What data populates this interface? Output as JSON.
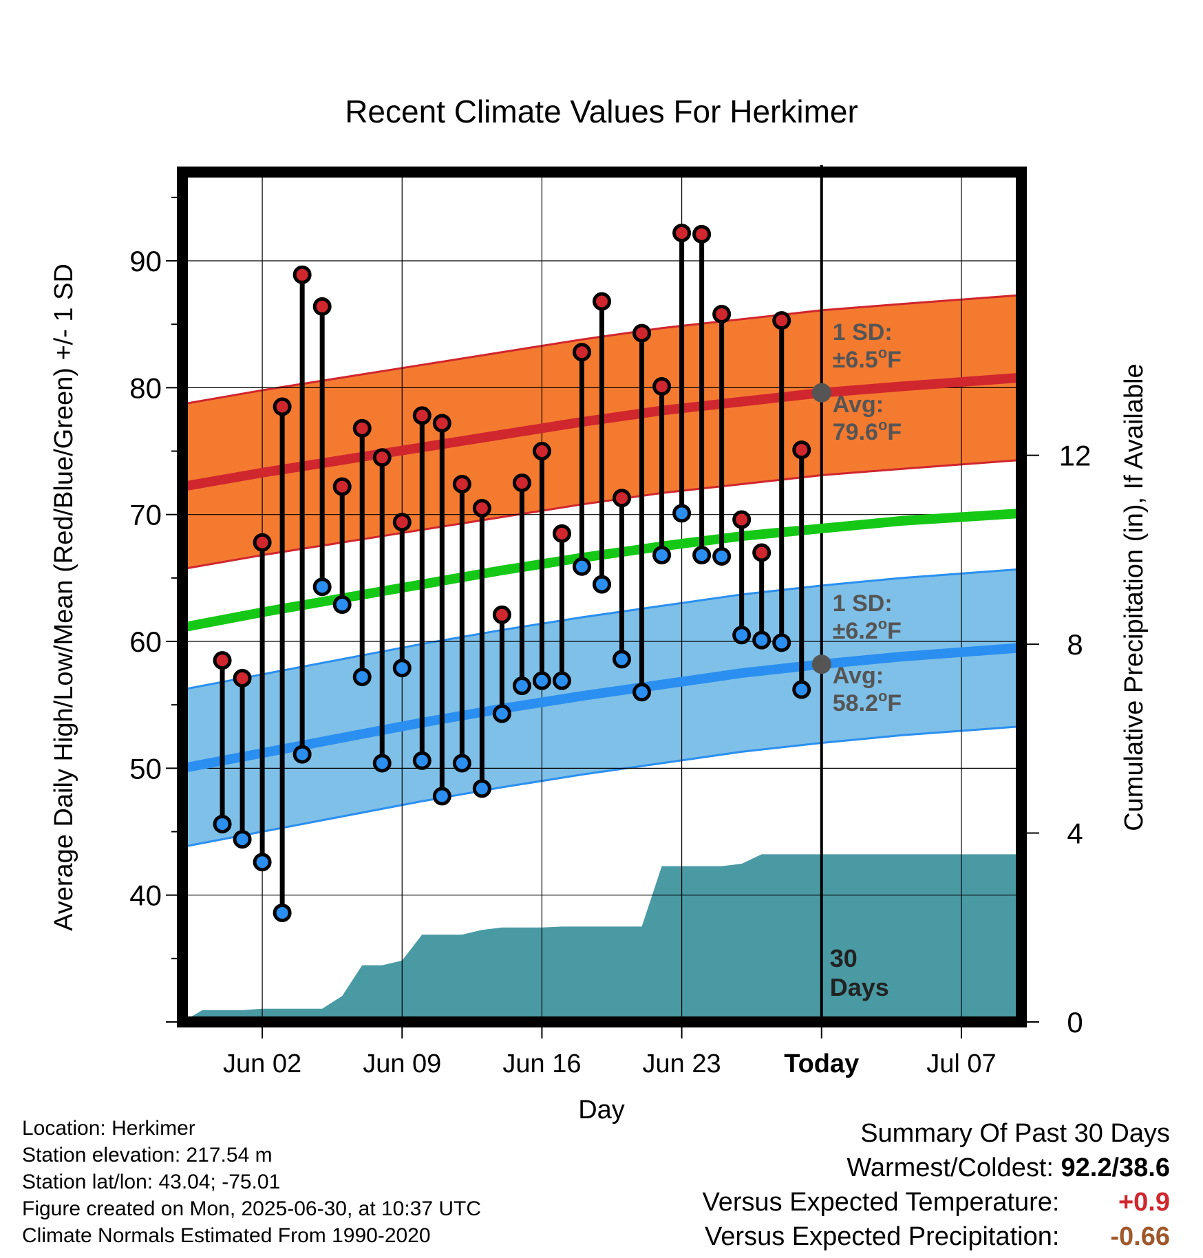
{
  "chart_data": {
    "type": "line",
    "title": "Recent Climate Values For Herkimer",
    "xlabel": "Day",
    "ylabel": "Average Daily High/Low/Mean (Red/Blue/Green) +/- 1 SD",
    "y2label": "Cumulative Precipitation (in), If Available",
    "ylim": [
      30,
      97
    ],
    "y2lim": [
      0,
      18
    ],
    "yticks": [
      40,
      50,
      60,
      70,
      80,
      90
    ],
    "y2ticks": [
      0,
      4,
      8,
      12
    ],
    "xlim": [
      "May 29",
      "Jul 10"
    ],
    "xticks": [
      {
        "date": "Jun 02",
        "label": "Jun 02"
      },
      {
        "date": "Jun 09",
        "label": "Jun 09"
      },
      {
        "date": "Jun 16",
        "label": "Jun 16"
      },
      {
        "date": "Jun 23",
        "label": "Jun 23"
      },
      {
        "date": "Jun 30",
        "label": "Today"
      },
      {
        "date": "Jul 07",
        "label": "Jul 07"
      }
    ],
    "today": "Jun 30",
    "today_label": "30\nDays",
    "grid": true,
    "daily_observations": {
      "dates": [
        "May 31",
        "Jun 01",
        "Jun 02",
        "Jun 03",
        "Jun 04",
        "Jun 05",
        "Jun 06",
        "Jun 07",
        "Jun 08",
        "Jun 09",
        "Jun 10",
        "Jun 11",
        "Jun 12",
        "Jun 13",
        "Jun 14",
        "Jun 15",
        "Jun 16",
        "Jun 17",
        "Jun 18",
        "Jun 19",
        "Jun 20",
        "Jun 21",
        "Jun 22",
        "Jun 23",
        "Jun 24",
        "Jun 25",
        "Jun 26",
        "Jun 27",
        "Jun 28",
        "Jun 29"
      ],
      "high": [
        58.5,
        57.1,
        67.8,
        78.5,
        88.9,
        86.4,
        72.2,
        76.8,
        74.5,
        69.4,
        77.8,
        77.2,
        72.4,
        70.5,
        62.1,
        72.5,
        75.0,
        68.5,
        82.8,
        86.8,
        71.3,
        84.3,
        80.1,
        92.2,
        92.1,
        85.8,
        69.6,
        67.0,
        85.3,
        75.1
      ],
      "low": [
        45.6,
        44.4,
        42.6,
        38.6,
        51.1,
        64.3,
        62.9,
        57.2,
        50.4,
        57.9,
        50.6,
        47.8,
        50.4,
        48.4,
        54.3,
        56.5,
        56.9,
        56.9,
        65.9,
        64.5,
        58.6,
        56.0,
        66.8,
        70.1,
        66.8,
        66.7,
        60.5,
        60.1,
        59.9,
        56.2
      ],
      "high_color": "#d0262e",
      "low_color": "#2a8ff0"
    },
    "normals": {
      "dates": [
        "May 29",
        "Jun 02",
        "Jun 06",
        "Jun 10",
        "Jun 14",
        "Jun 18",
        "Jun 22",
        "Jun 26",
        "Jun 30",
        "Jul 04",
        "Jul 10"
      ],
      "high_avg": [
        72.2,
        73.3,
        74.3,
        75.3,
        76.3,
        77.3,
        78.2,
        78.9,
        79.6,
        80.1,
        80.8
      ],
      "high_sd": 6.5,
      "low_avg": [
        50.0,
        51.2,
        52.4,
        53.6,
        54.7,
        55.7,
        56.6,
        57.5,
        58.2,
        58.8,
        59.5
      ],
      "low_sd": 6.2,
      "mean_avg": [
        61.1,
        62.3,
        63.4,
        64.5,
        65.6,
        66.6,
        67.5,
        68.3,
        68.9,
        69.5,
        70.1
      ],
      "high_band_color": "#f47a30",
      "high_line_color": "#d0262e",
      "low_band_color": "#7fc0e8",
      "low_line_color": "#2a8ff0",
      "mean_line_color": "#16c816"
    },
    "precipitation": {
      "dates": [
        "May 29",
        "May 30",
        "Jun 01",
        "Jun 02",
        "Jun 03",
        "Jun 04",
        "Jun 05",
        "Jun 06",
        "Jun 07",
        "Jun 08",
        "Jun 09",
        "Jun 10",
        "Jun 11",
        "Jun 12",
        "Jun 13",
        "Jun 14",
        "Jun 15",
        "Jun 16",
        "Jun 17",
        "Jun 18",
        "Jun 19",
        "Jun 20",
        "Jun 21",
        "Jun 22",
        "Jun 23",
        "Jun 24",
        "Jun 25",
        "Jun 26",
        "Jun 27",
        "Jun 28",
        "Jul 10"
      ],
      "cumulative": [
        0.0,
        0.25,
        0.25,
        0.28,
        0.28,
        0.28,
        0.28,
        0.55,
        1.2,
        1.2,
        1.3,
        1.85,
        1.85,
        1.85,
        1.95,
        2.0,
        2.0,
        2.0,
        2.02,
        2.02,
        2.02,
        2.02,
        2.02,
        3.3,
        3.3,
        3.3,
        3.3,
        3.35,
        3.55,
        3.55,
        3.55
      ],
      "color": "#4a9aa4"
    },
    "annotations": {
      "high_sd": {
        "line1": "1 SD:",
        "line2": "±6.5",
        "unit": "°F"
      },
      "high_avg": {
        "line1": "Avg:",
        "line2": "79.6",
        "unit": "°F",
        "value": 79.6
      },
      "low_sd": {
        "line1": "1 SD:",
        "line2": "±6.2",
        "unit": "°F"
      },
      "low_avg": {
        "line1": "Avg:",
        "line2": "58.2",
        "unit": "°F",
        "value": 58.2
      }
    }
  },
  "station_info": {
    "location": "Location: Herkimer",
    "elevation": "Station elevation: 217.54 m",
    "latlon": "Station lat/lon: 43.04; -75.01",
    "created": "Figure created on Mon, 2025-06-30, at 10:37 UTC",
    "normals": "Climate Normals Estimated From 1990-2020"
  },
  "summary": {
    "title": "Summary Of Past 30 Days",
    "warmest_coldest_label": "Warmest/Coldest:",
    "warmest_coldest_value": "92.2/38.6",
    "temp_label": "Versus Expected Temperature:",
    "temp_value": "+0.9",
    "precip_label": "Versus Expected Precipitation:",
    "precip_value": "-0.66"
  }
}
